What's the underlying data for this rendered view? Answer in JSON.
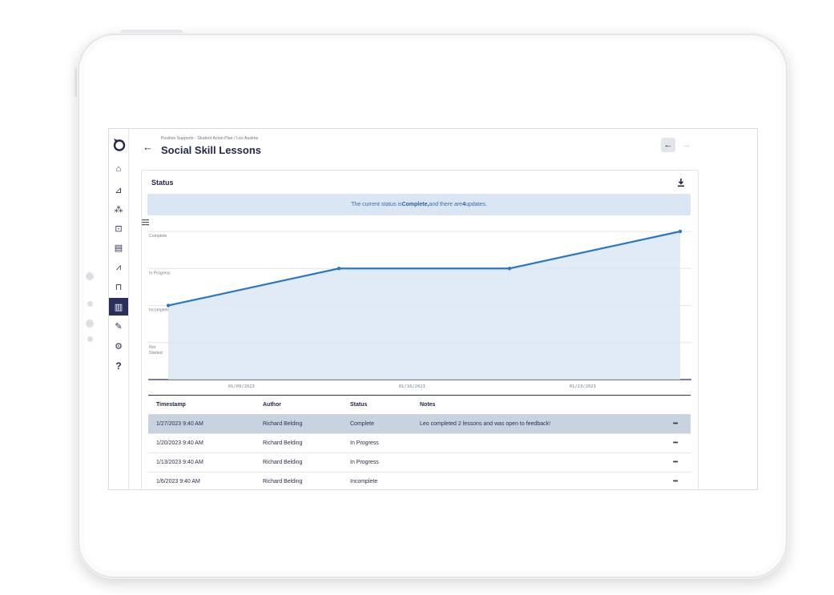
{
  "app": {
    "breadcrumb": "Positive Supports - Student Acton Plan / Leo Austine",
    "title": "Social Skill Lessons"
  },
  "sidebar": {
    "items": [
      {
        "icon": "home-icon",
        "glyph": "⌂"
      },
      {
        "icon": "line-chart-icon",
        "glyph": "⊿"
      },
      {
        "icon": "users-icon",
        "glyph": "⁂"
      },
      {
        "icon": "presentation-icon",
        "glyph": "⊡"
      },
      {
        "icon": "book-icon",
        "glyph": "▤"
      },
      {
        "icon": "compass-icon",
        "glyph": "⩘"
      },
      {
        "icon": "bookmark-icon",
        "glyph": "⊓"
      },
      {
        "icon": "map-icon",
        "glyph": "▥"
      },
      {
        "icon": "edit-icon",
        "glyph": "✎"
      },
      {
        "icon": "gears-icon",
        "glyph": "⚙"
      },
      {
        "icon": "help-icon",
        "glyph": "?"
      }
    ],
    "active_index": 7
  },
  "status_card": {
    "title": "Status",
    "banner": {
      "prefix": "The current status is ",
      "status": "Complete,",
      "middle": " and there are ",
      "count": "4",
      "suffix": " updates."
    }
  },
  "chart_data": {
    "type": "area",
    "y_categories": [
      "Not Started",
      "Incomplete",
      "In Progress",
      "Complete"
    ],
    "x_tick_labels": [
      "01/09/2023",
      "01/16/2023",
      "01/23/2023"
    ],
    "xlim": [
      "2023-01-06",
      "2023-01-27"
    ],
    "series": [
      {
        "points": [
          {
            "x": "2023-01-06",
            "y": "Incomplete"
          },
          {
            "x": "2023-01-13",
            "y": "In Progress"
          },
          {
            "x": "2023-01-20",
            "y": "In Progress"
          },
          {
            "x": "2023-01-27",
            "y": "Complete"
          }
        ]
      }
    ],
    "colors": {
      "line": "#2b78c2",
      "fill": "#dce7f4",
      "grid": "#e3e6ea"
    }
  },
  "table": {
    "headers": {
      "timestamp": "Timestamp",
      "author": "Author",
      "status": "Status",
      "notes": "Notes"
    },
    "rows": [
      {
        "timestamp": "1/27/2023 9:40 AM",
        "author": "Richard Belding",
        "status": "Complete",
        "notes": "Leo completed 2 lessons and was open to feedback!",
        "more": "•••"
      },
      {
        "timestamp": "1/20/2023 9:40 AM",
        "author": "Richard Belding",
        "status": "In Progress",
        "notes": "",
        "more": "•••"
      },
      {
        "timestamp": "1/13/2023 9:40 AM",
        "author": "Richard Belding",
        "status": "In Progress",
        "notes": "",
        "more": "•••"
      },
      {
        "timestamp": "1/6/2023 9:40 AM",
        "author": "Richard Belding",
        "status": "Incomplete",
        "notes": "",
        "more": "•••"
      }
    ]
  }
}
